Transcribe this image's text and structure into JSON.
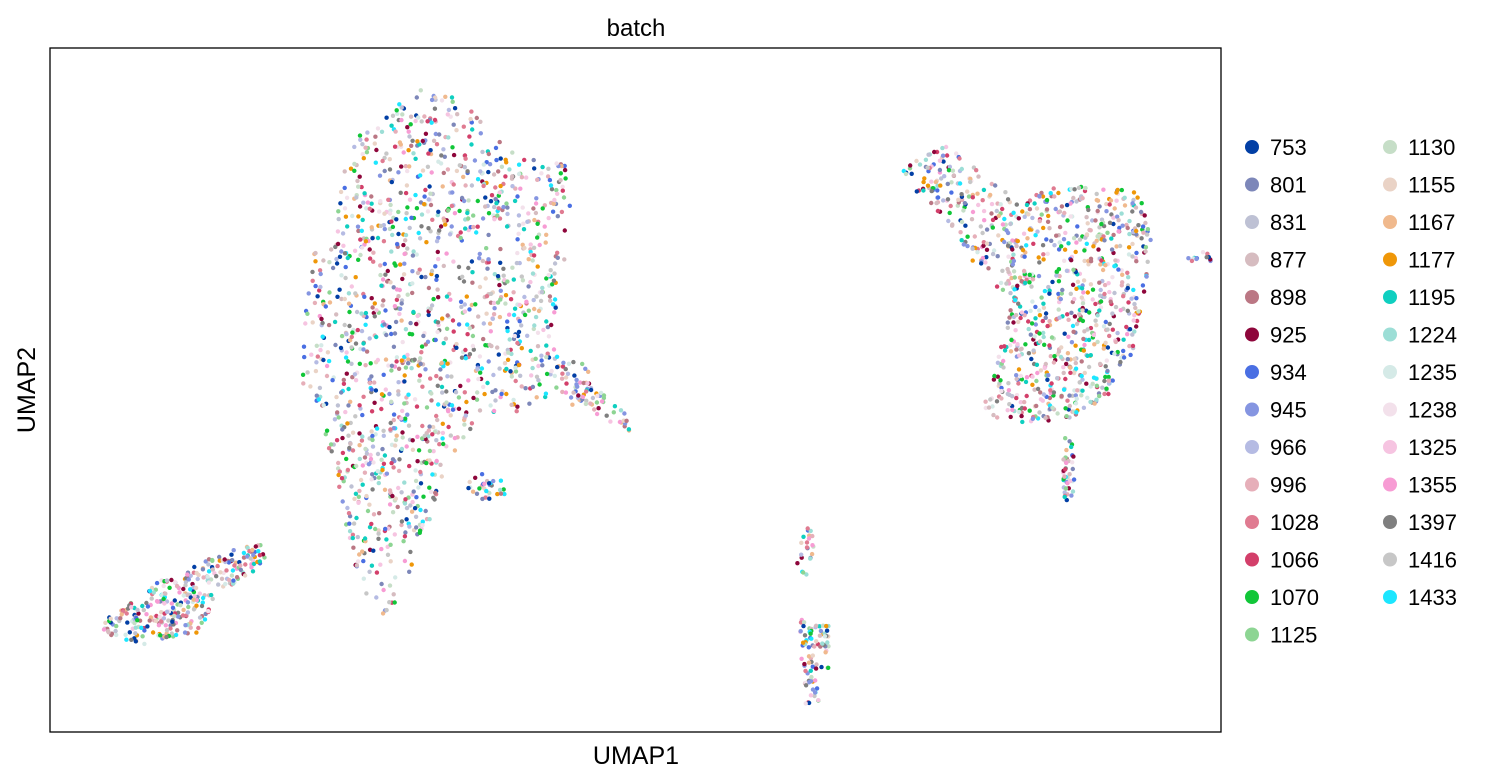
{
  "chart_data": {
    "type": "scatter",
    "title": "batch",
    "xlabel": "UMAP1",
    "ylabel": "UMAP2",
    "xlim": [
      0,
      100
    ],
    "ylim": [
      0,
      100
    ],
    "grid": false,
    "xticks": [],
    "yticks": [],
    "legend_placement": "right, outside plot, two columns",
    "legend": [
      {
        "label": "753",
        "color": "#023fa5"
      },
      {
        "label": "801",
        "color": "#7d87b9"
      },
      {
        "label": "831",
        "color": "#bec1d4"
      },
      {
        "label": "877",
        "color": "#d6bcc0"
      },
      {
        "label": "898",
        "color": "#bb7784"
      },
      {
        "label": "925",
        "color": "#8e063b"
      },
      {
        "label": "934",
        "color": "#4a6fe3"
      },
      {
        "label": "945",
        "color": "#8595e1"
      },
      {
        "label": "966",
        "color": "#b5bbe3"
      },
      {
        "label": "996",
        "color": "#e6afb9"
      },
      {
        "label": "1028",
        "color": "#e07b91"
      },
      {
        "label": "1066",
        "color": "#d33f6a"
      },
      {
        "label": "1070",
        "color": "#11c638"
      },
      {
        "label": "1125",
        "color": "#8dd593"
      },
      {
        "label": "1130",
        "color": "#c6dec7"
      },
      {
        "label": "1155",
        "color": "#ead3c6"
      },
      {
        "label": "1167",
        "color": "#f0b98d"
      },
      {
        "label": "1177",
        "color": "#ef9708"
      },
      {
        "label": "1195",
        "color": "#0fcfc0"
      },
      {
        "label": "1224",
        "color": "#9cded6"
      },
      {
        "label": "1235",
        "color": "#d5eae7"
      },
      {
        "label": "1238",
        "color": "#f3e1eb"
      },
      {
        "label": "1325",
        "color": "#f6c4e1"
      },
      {
        "label": "1355",
        "color": "#f79cd4"
      },
      {
        "label": "1397",
        "color": "#7f7f7f"
      },
      {
        "label": "1416",
        "color": "#c7c7c7"
      },
      {
        "label": "1433",
        "color": "#1ce6ff"
      }
    ],
    "clusters": [
      {
        "polygon": [
          [
            4.5,
            16
          ],
          [
            9,
            22
          ],
          [
            15,
            26.5
          ],
          [
            18,
            27.5
          ],
          [
            18.5,
            24.5
          ],
          [
            15,
            21
          ],
          [
            12.5,
            14.5
          ],
          [
            8,
            12.5
          ],
          [
            4.5,
            14.5
          ]
        ],
        "n": 320
      },
      {
        "polygon": [
          [
            25.5,
            86
          ],
          [
            30,
            92
          ],
          [
            32,
            94.5
          ],
          [
            35.5,
            92
          ],
          [
            38,
            87
          ],
          [
            40.5,
            84
          ],
          [
            44,
            83
          ],
          [
            44.5,
            76
          ],
          [
            43.5,
            64
          ],
          [
            43,
            55
          ],
          [
            46.5,
            53.5
          ],
          [
            45.5,
            48
          ],
          [
            41,
            47
          ],
          [
            37.5,
            46.5
          ],
          [
            35,
            42
          ],
          [
            33.5,
            37
          ],
          [
            32,
            28
          ],
          [
            29,
            17
          ],
          [
            27.5,
            17.5
          ],
          [
            25.5,
            27
          ],
          [
            24.5,
            37
          ],
          [
            23,
            47
          ],
          [
            21.5,
            51
          ],
          [
            21.5,
            63
          ],
          [
            22.5,
            70
          ],
          [
            24,
            74
          ],
          [
            25,
            80
          ]
        ],
        "n": 1450
      },
      {
        "polygon": [
          [
            44,
            51
          ],
          [
            45.5,
            48
          ],
          [
            47.5,
            45
          ],
          [
            49.5,
            44
          ],
          [
            49,
            47
          ],
          [
            47,
            50
          ],
          [
            45,
            52
          ]
        ],
        "n": 45
      },
      {
        "polygon": [
          [
            36.5,
            38
          ],
          [
            38.5,
            37
          ],
          [
            39.5,
            35
          ],
          [
            37,
            33.5
          ],
          [
            35.5,
            36
          ]
        ],
        "n": 30
      },
      {
        "polygon": [
          [
            64,
            30
          ],
          [
            65.5,
            29.5
          ],
          [
            65,
            25
          ],
          [
            64.5,
            22.5
          ],
          [
            63.8,
            24.5
          ],
          [
            64,
            28
          ]
        ],
        "n": 22
      },
      {
        "polygon": [
          [
            64,
            16.5
          ],
          [
            66.5,
            16.5
          ],
          [
            66.5,
            9.5
          ],
          [
            65.5,
            4
          ],
          [
            64.5,
            4
          ],
          [
            64.2,
            10
          ]
        ],
        "n": 85
      },
      {
        "polygon": [
          [
            72.5,
            82
          ],
          [
            76.5,
            86
          ],
          [
            80,
            81
          ],
          [
            83,
            78
          ],
          [
            86,
            80
          ],
          [
            90,
            79.5
          ],
          [
            93,
            79
          ],
          [
            94,
            72
          ],
          [
            93.5,
            64
          ],
          [
            92.5,
            56
          ],
          [
            91,
            50
          ],
          [
            88,
            46
          ],
          [
            82,
            45
          ],
          [
            79.5,
            47
          ],
          [
            81,
            55
          ],
          [
            82,
            63
          ],
          [
            79,
            68
          ],
          [
            77.5,
            73
          ],
          [
            74,
            79
          ]
        ],
        "n": 950
      },
      {
        "polygon": [
          [
            86.5,
            43
          ],
          [
            87.5,
            43
          ],
          [
            87.5,
            35
          ],
          [
            86.7,
            33
          ],
          [
            86.5,
            37
          ]
        ],
        "n": 40
      },
      {
        "polygon": [
          [
            97,
            69.5
          ],
          [
            99.5,
            71
          ],
          [
            99.5,
            68.5
          ],
          [
            97.5,
            68.5
          ]
        ],
        "n": 12
      }
    ]
  }
}
